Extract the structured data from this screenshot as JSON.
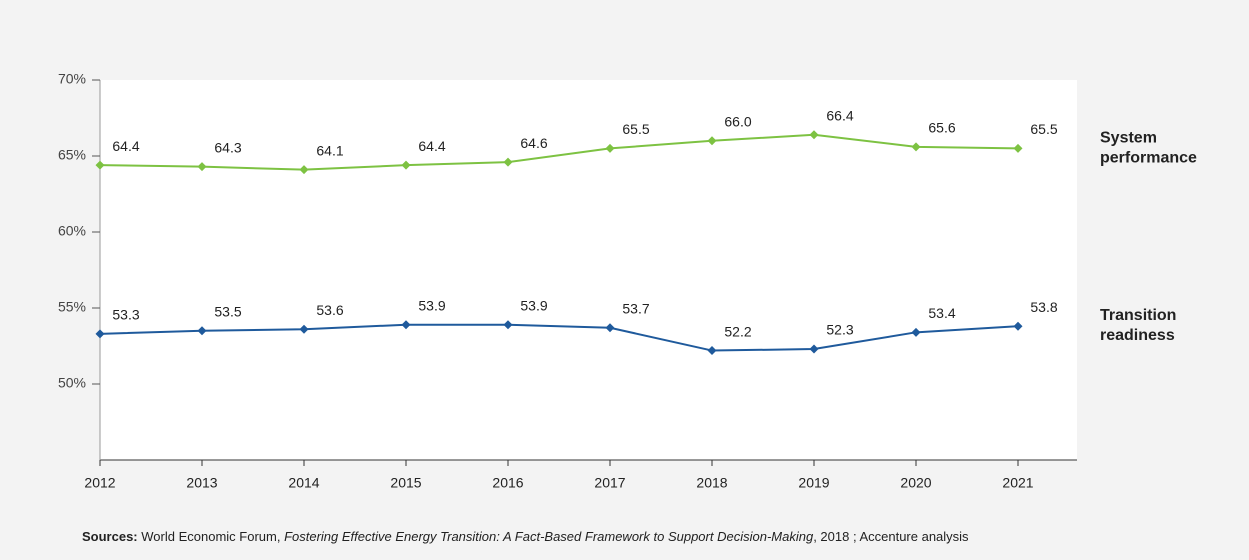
{
  "chart_data": {
    "type": "line",
    "categories": [
      "2012",
      "2013",
      "2014",
      "2015",
      "2016",
      "2017",
      "2018",
      "2019",
      "2020",
      "2021"
    ],
    "series": [
      {
        "name": "System performance",
        "color": "#7dc242",
        "values": [
          64.4,
          64.3,
          64.1,
          64.4,
          64.6,
          65.5,
          66.0,
          66.4,
          65.6,
          65.5
        ],
        "value_labels": [
          "64.4",
          "64.3",
          "64.1",
          "64.4",
          "64.6",
          "65.5",
          "66.0",
          "66.4",
          "65.6",
          "65.5"
        ]
      },
      {
        "name": "Transition readiness",
        "color": "#1f5a9c",
        "values": [
          53.3,
          53.5,
          53.6,
          53.9,
          53.9,
          53.7,
          52.2,
          52.3,
          53.4,
          53.8
        ],
        "value_labels": [
          "53.3",
          "53.5",
          "53.6",
          "53.9",
          "53.9",
          "53.7",
          "52.2",
          "52.3",
          "53.4",
          "53.8"
        ]
      }
    ],
    "ylim": [
      45,
      70
    ],
    "yticks": [
      {
        "value": 50,
        "label": "50%"
      },
      {
        "value": 55,
        "label": "55%"
      },
      {
        "value": 60,
        "label": "60%"
      },
      {
        "value": 65,
        "label": "65%"
      },
      {
        "value": 70,
        "label": "70%"
      }
    ],
    "source_label": "Sources:",
    "source_parts": [
      " World Economic Forum, ",
      "Fostering Effective Energy Transition: A Fact-Based Framework to Support Decision-Making",
      ", 2018 ; Accenture analysis"
    ]
  }
}
